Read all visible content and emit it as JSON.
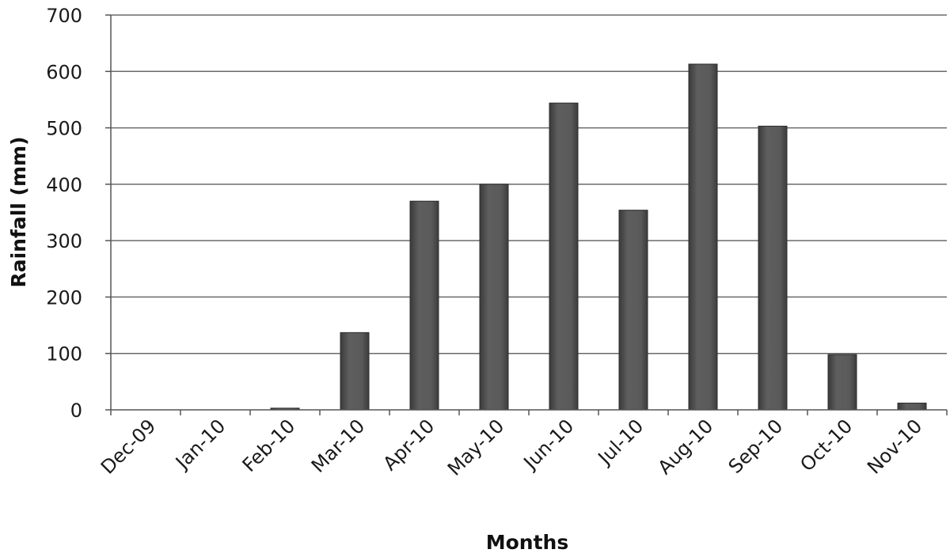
{
  "chart_data": {
    "type": "bar",
    "title": "",
    "xlabel": "Months",
    "ylabel": "Rainfall (mm)",
    "categories": [
      "Dec-09",
      "Jan-10",
      "Feb-10",
      "Mar-10",
      "Apr-10",
      "May-10",
      "Jun-10",
      "Jul-10",
      "Aug-10",
      "Sep-10",
      "Oct-10",
      "Nov-10"
    ],
    "values": [
      0,
      0,
      3,
      137,
      370,
      400,
      544,
      354,
      613,
      503,
      98,
      12
    ],
    "ylim": [
      0,
      700
    ],
    "yticks": [
      0,
      100,
      200,
      300,
      400,
      500,
      600,
      700
    ],
    "grid": "horizontal",
    "legend": "none",
    "colors": {
      "bar": "#555555",
      "bar_edge": "#2e2e2e",
      "grid": "#6a6a6a",
      "axis": "#555555"
    }
  }
}
